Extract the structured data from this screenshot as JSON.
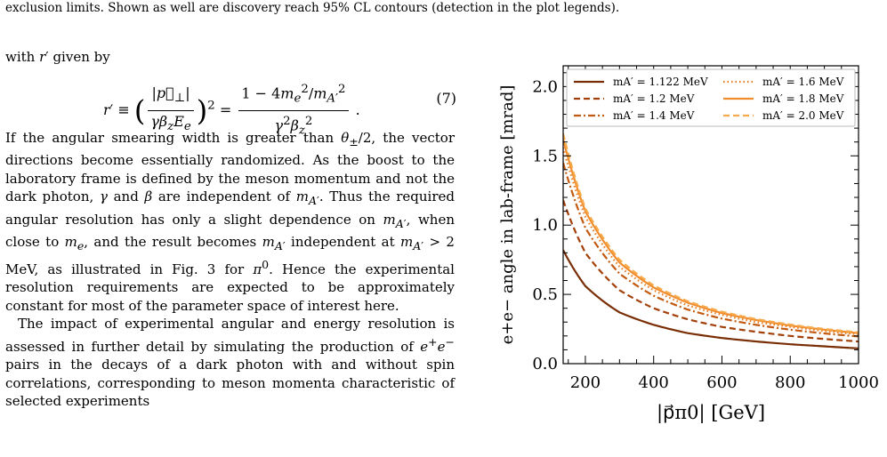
{
  "caption": "exclusion limits. Shown as well are discovery reach 95% CL contours (detection in the plot legends).",
  "text": {
    "intro": "with r′ given by",
    "equation_number": "(7)",
    "para1": "If the angular smearing width is greater than θ±/2, the vector directions become essentially randomized. As the boost to the laboratory frame is defined by the meson momentum and not the dark photon, γ and β are independent of mA′. Thus the required angular resolution has only a slight dependence on mA′, when close to me, and the result becomes mA′ independent at mA′ > 2 MeV, as illustrated in Fig. 3 for π0. Hence the experimental resolution requirements are expected to be approximately constant for most of the parameter space of interest here.",
    "para2": "The impact of experimental angular and energy resolution is assessed in further detail by simulating the production of e+e− pairs in the decays of a dark photon with and without spin correlations, corresponding to meson momenta characteristic of selected experiments"
  },
  "colors": {
    "m1122": "#7a2e05",
    "m12": "#a34009",
    "m14": "#c25a12",
    "m16": "#e87a20",
    "m18": "#f08c2c",
    "m20": "#f7aa4c"
  },
  "chart_data": {
    "type": "line",
    "xlabel": "|p⃗π0| [GeV]",
    "ylabel": "e+e− angle in lab-frame [mrad]",
    "xlim": [
      135,
      1000
    ],
    "ylim": [
      0,
      2.15
    ],
    "xticks": [
      200,
      400,
      600,
      800,
      1000
    ],
    "yticks": [
      0.0,
      0.5,
      1.0,
      1.5,
      2.0
    ],
    "x_tick_labels": [
      "200",
      "400",
      "600",
      "800",
      "1000"
    ],
    "y_tick_labels": [
      "0.0",
      "0.5",
      "1.0",
      "1.5",
      "2.0"
    ],
    "legend_position": "top",
    "series": [
      {
        "name": "mA′ = 1.122 MeV",
        "color": "#7a2e05",
        "dash": "solid",
        "x": [
          135,
          200,
          300,
          400,
          500,
          600,
          700,
          800,
          900,
          1000
        ],
        "y": [
          0.82,
          0.56,
          0.37,
          0.28,
          0.22,
          0.185,
          0.16,
          0.14,
          0.125,
          0.11
        ]
      },
      {
        "name": "mA′ = 1.2 MeV",
        "color": "#a34009",
        "dash": "dashed",
        "x": [
          135,
          200,
          300,
          400,
          500,
          600,
          700,
          800,
          900,
          1000
        ],
        "y": [
          1.18,
          0.8,
          0.53,
          0.4,
          0.32,
          0.265,
          0.23,
          0.2,
          0.178,
          0.16
        ]
      },
      {
        "name": "mA′ = 1.4 MeV",
        "color": "#c25a12",
        "dash": "dashdot",
        "x": [
          135,
          200,
          300,
          400,
          500,
          600,
          700,
          800,
          900,
          1000
        ],
        "y": [
          1.45,
          0.98,
          0.65,
          0.49,
          0.39,
          0.325,
          0.28,
          0.245,
          0.218,
          0.196
        ]
      },
      {
        "name": "mA′ = 1.6 MeV",
        "color": "#e87a20",
        "dash": "dotted",
        "x": [
          135,
          200,
          300,
          400,
          500,
          600,
          700,
          800,
          900,
          1000
        ],
        "y": [
          1.56,
          1.06,
          0.7,
          0.53,
          0.42,
          0.352,
          0.3,
          0.265,
          0.235,
          0.212
        ]
      },
      {
        "name": "mA′ = 1.8 MeV",
        "color": "#f08c2c",
        "dash": "solid",
        "x": [
          135,
          200,
          300,
          400,
          500,
          600,
          700,
          800,
          900,
          1000
        ],
        "y": [
          1.62,
          1.1,
          0.73,
          0.55,
          0.44,
          0.365,
          0.315,
          0.275,
          0.245,
          0.22
        ]
      },
      {
        "name": "mA′ = 2.0 MeV",
        "color": "#f7aa4c",
        "dash": "dashed",
        "x": [
          135,
          200,
          300,
          400,
          500,
          600,
          700,
          800,
          900,
          1000
        ],
        "y": [
          1.66,
          1.12,
          0.75,
          0.565,
          0.45,
          0.375,
          0.322,
          0.282,
          0.25,
          0.226
        ]
      }
    ]
  }
}
